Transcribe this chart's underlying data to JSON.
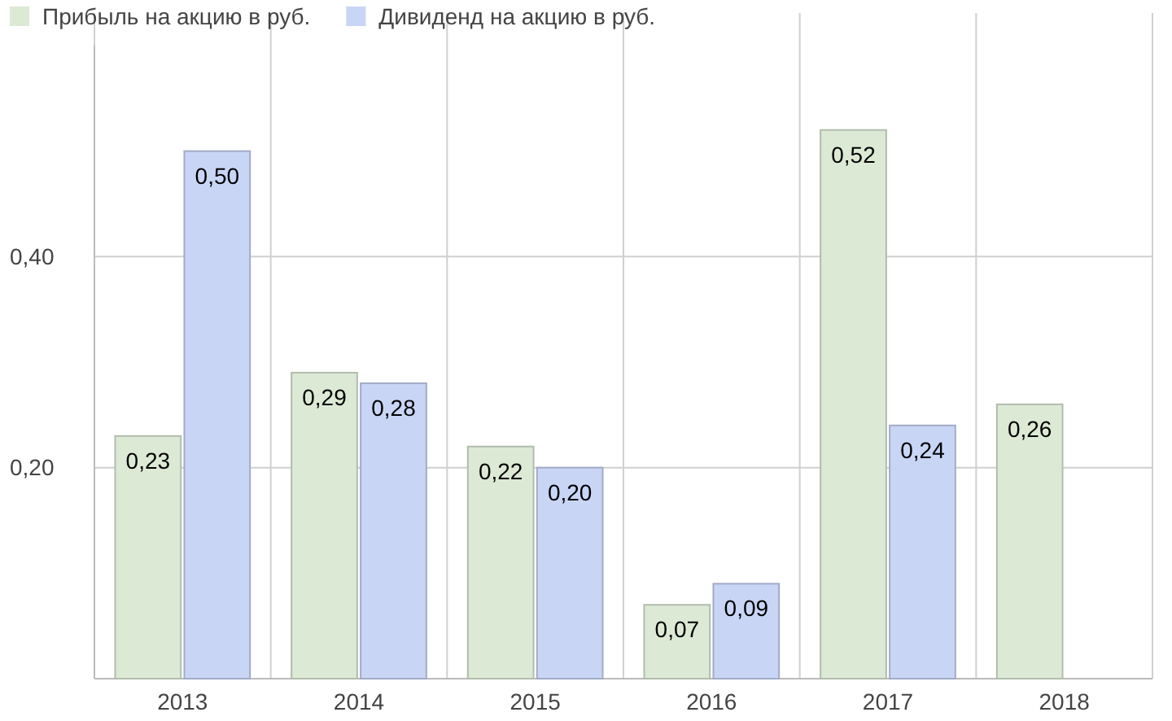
{
  "chart_data": {
    "type": "bar",
    "categories": [
      "2013",
      "2014",
      "2015",
      "2016",
      "2017",
      "2018"
    ],
    "series": [
      {
        "name": "Прибыль на акцию в руб.",
        "color": "#dce9d5",
        "values": [
          0.23,
          0.29,
          0.22,
          0.07,
          0.52,
          0.26
        ],
        "value_labels": [
          "0,23",
          "0,29",
          "0,22",
          "0,07",
          "0,52",
          "0,26"
        ]
      },
      {
        "name": "Дивиденд на акцию в руб.",
        "color": "#c9d5f5",
        "values": [
          0.5,
          0.28,
          0.2,
          0.09,
          0.24,
          null
        ],
        "value_labels": [
          "0,50",
          "0,28",
          "0,20",
          "0,09",
          "0,24",
          null
        ]
      }
    ],
    "ylim": [
      0,
      0.6
    ],
    "yticks": [
      {
        "value": 0.2,
        "label": "0,20"
      },
      {
        "value": 0.4,
        "label": "0,40"
      }
    ],
    "grid": true,
    "legend": "top left"
  }
}
